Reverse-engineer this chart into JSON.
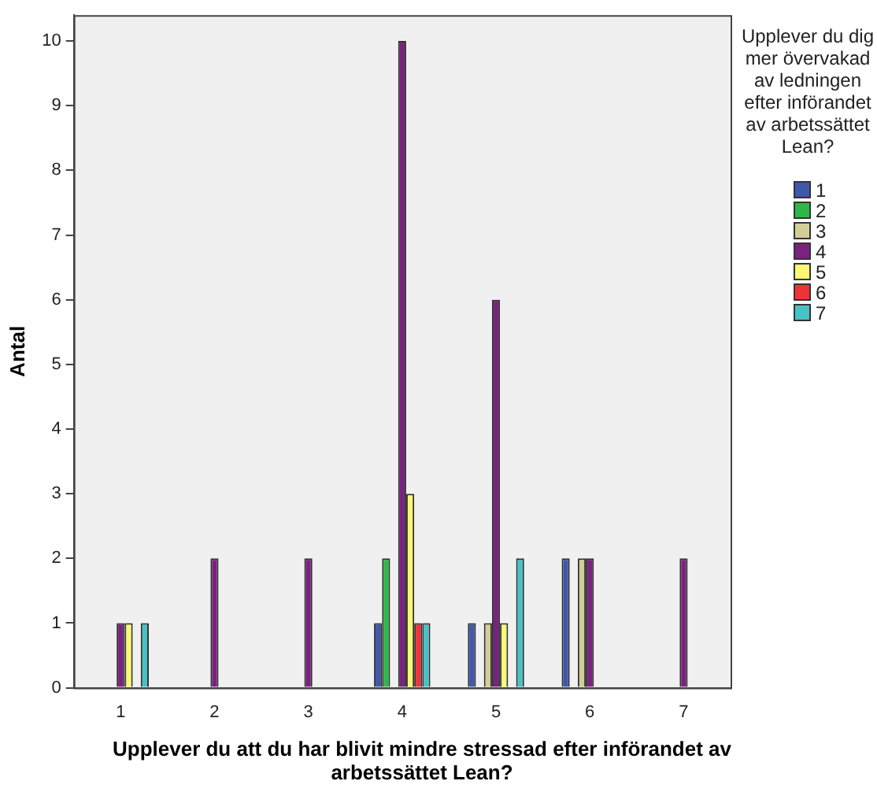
{
  "chart_data": {
    "type": "bar",
    "xlabel": "Upplever du att du har blivit mindre stressad efter införandet av arbetssättet Lean?",
    "ylabel": "Antal",
    "legend_title": "Upplever du dig mer övervakad av ledningen efter införandet av arbetssättet Lean?",
    "categories": [
      "1",
      "2",
      "3",
      "4",
      "5",
      "6",
      "7"
    ],
    "series": [
      {
        "name": "1",
        "color": "#3e58ac",
        "values": [
          0,
          0,
          0,
          1,
          1,
          2,
          0
        ]
      },
      {
        "name": "2",
        "color": "#2eb848",
        "values": [
          0,
          0,
          0,
          2,
          0,
          0,
          0
        ]
      },
      {
        "name": "3",
        "color": "#d3ce97",
        "values": [
          0,
          0,
          0,
          0,
          1,
          2,
          0
        ]
      },
      {
        "name": "4",
        "color": "#7b2281",
        "values": [
          1,
          2,
          2,
          10,
          6,
          2,
          2
        ]
      },
      {
        "name": "5",
        "color": "#fbf873",
        "values": [
          1,
          0,
          0,
          3,
          1,
          0,
          0
        ]
      },
      {
        "name": "6",
        "color": "#ef3338",
        "values": [
          0,
          0,
          0,
          1,
          0,
          0,
          0
        ]
      },
      {
        "name": "7",
        "color": "#48c2c5",
        "values": [
          1,
          0,
          0,
          1,
          2,
          0,
          0
        ]
      }
    ],
    "ylim": [
      0,
      10.4
    ],
    "yticks": [
      0,
      1,
      2,
      3,
      4,
      5,
      6,
      7,
      8,
      9,
      10
    ],
    "grid": false,
    "legend": "right"
  }
}
